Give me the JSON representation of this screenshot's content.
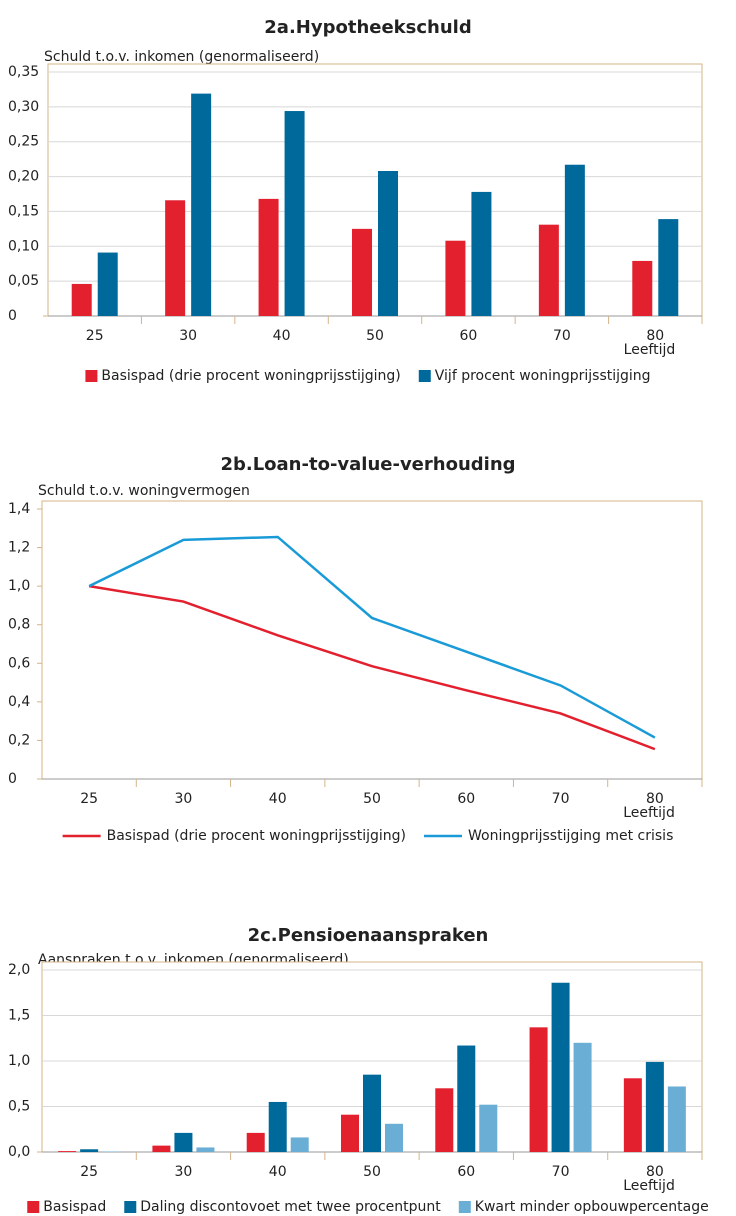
{
  "chart_data": [
    {
      "type": "bar",
      "title": "2a.Hypotheekschuld",
      "y_label": "Schuld t.o.v. inkomen (genormaliseerd)",
      "x_label": "Leeftijd",
      "categories": [
        "25",
        "30",
        "40",
        "50",
        "60",
        "70",
        "80"
      ],
      "series": [
        {
          "name": "Basispad (drie procent woningprijsstijging)",
          "color": "#e3202e",
          "values": [
            0.046,
            0.166,
            0.168,
            0.125,
            0.108,
            0.131,
            0.079
          ]
        },
        {
          "name": "Vijf procent woningprijsstijging",
          "color": "#00699c",
          "values": [
            0.091,
            0.319,
            0.294,
            0.208,
            0.178,
            0.217,
            0.139
          ]
        }
      ],
      "ylim": [
        0,
        0.35
      ],
      "yticks": [
        0,
        {
          "value": 0.05,
          "label": "0,05"
        },
        {
          "value": 0.1,
          "label": "0,10"
        },
        {
          "value": 0.15,
          "label": "0,15"
        },
        {
          "value": 0.2,
          "label": "0,20"
        },
        {
          "value": 0.25,
          "label": "0,25"
        },
        {
          "value": 0.3,
          "label": "0,30"
        },
        {
          "value": 0.35,
          "label": "0,35"
        }
      ],
      "grid": true
    },
    {
      "type": "line",
      "title": "2b.Loan-to-value-verhouding",
      "y_label": "Schuld t.o.v. woningvermogen",
      "x_label": "Leeftijd",
      "categories": [
        "25",
        "30",
        "40",
        "50",
        "60",
        "70",
        "80"
      ],
      "series": [
        {
          "name": "Basispad (drie procent woningprijsstijging)",
          "color": "#e3202e",
          "values": [
            1.0,
            0.92,
            0.745,
            0.585,
            0.46,
            0.34,
            0.155
          ]
        },
        {
          "name": "Woningprijsstijging met crisis",
          "color": "#1a9bd7",
          "values": [
            1.0,
            1.24,
            1.255,
            0.835,
            0.66,
            0.485,
            0.215
          ]
        }
      ],
      "ylim": [
        0,
        1.4
      ],
      "yticks": [
        0,
        {
          "value": 0.2,
          "label": "0,2"
        },
        {
          "value": 0.4,
          "label": "0,4"
        },
        {
          "value": 0.6,
          "label": "0,6"
        },
        {
          "value": 0.8,
          "label": "0,8"
        },
        {
          "value": 1.0,
          "label": "1,0"
        },
        {
          "value": 1.2,
          "label": "1,2"
        },
        {
          "value": 1.4,
          "label": "1,4"
        }
      ],
      "grid": false
    },
    {
      "type": "bar",
      "title": "2c.Pensioenaanspraken",
      "y_label": "Aanspraken t.o.v. inkomen (genormaliseerd)",
      "x_label": "Leeftijd",
      "categories": [
        "25",
        "30",
        "40",
        "50",
        "60",
        "70",
        "80"
      ],
      "series": [
        {
          "name": "Basispad",
          "color": "#e3202e",
          "values": [
            0.01,
            0.07,
            0.21,
            0.41,
            0.7,
            1.37,
            0.81
          ]
        },
        {
          "name": "Daling discontovoet met twee procentpunt",
          "color": "#00699c",
          "values": [
            0.03,
            0.21,
            0.55,
            0.85,
            1.17,
            1.86,
            0.99
          ]
        },
        {
          "name": "Kwart minder opbouwpercentage",
          "color": "#6aaed6",
          "values": [
            0.005,
            0.05,
            0.16,
            0.31,
            0.52,
            1.2,
            0.72
          ]
        }
      ],
      "ylim": [
        0,
        2.0
      ],
      "yticks": [
        {
          "value": 0,
          "label": "0,0"
        },
        {
          "value": 0.5,
          "label": "0,5"
        },
        {
          "value": 1.0,
          "label": "1,0"
        },
        {
          "value": 1.5,
          "label": "1,5"
        },
        {
          "value": 2.0,
          "label": "2,0"
        }
      ],
      "grid": true
    }
  ]
}
